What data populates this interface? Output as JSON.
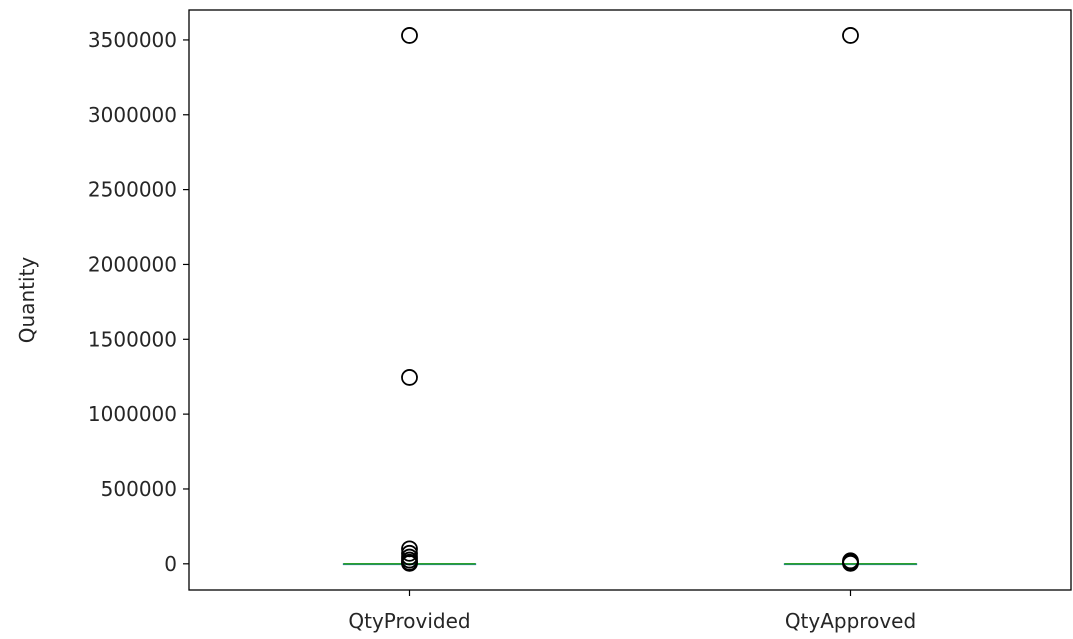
{
  "chart_data": {
    "type": "box",
    "ylabel": "Quantity",
    "xlabel": "",
    "categories": [
      "QtyProvided",
      "QtyApproved"
    ],
    "ylim": [
      -175000,
      3700000
    ],
    "yticks": [
      0,
      500000,
      1000000,
      1500000,
      2000000,
      2500000,
      3000000,
      3500000
    ],
    "grid": false,
    "boxes": [
      {
        "name": "QtyProvided",
        "median": 0,
        "q1": 0,
        "q3": 0,
        "whisker_low": 0,
        "whisker_high": 0,
        "outliers": [
          3530000,
          1245000,
          100000,
          70000,
          45000,
          25000,
          10000,
          3000
        ]
      },
      {
        "name": "QtyApproved",
        "median": 0,
        "q1": 0,
        "q3": 0,
        "whisker_low": 0,
        "whisker_high": 0,
        "outliers": [
          3530000,
          20000,
          10000,
          3000
        ]
      }
    ],
    "colors": {
      "median": "#2ca02c",
      "box": "#1f77b4",
      "outlier": "#000000",
      "axes": "#000000"
    }
  }
}
